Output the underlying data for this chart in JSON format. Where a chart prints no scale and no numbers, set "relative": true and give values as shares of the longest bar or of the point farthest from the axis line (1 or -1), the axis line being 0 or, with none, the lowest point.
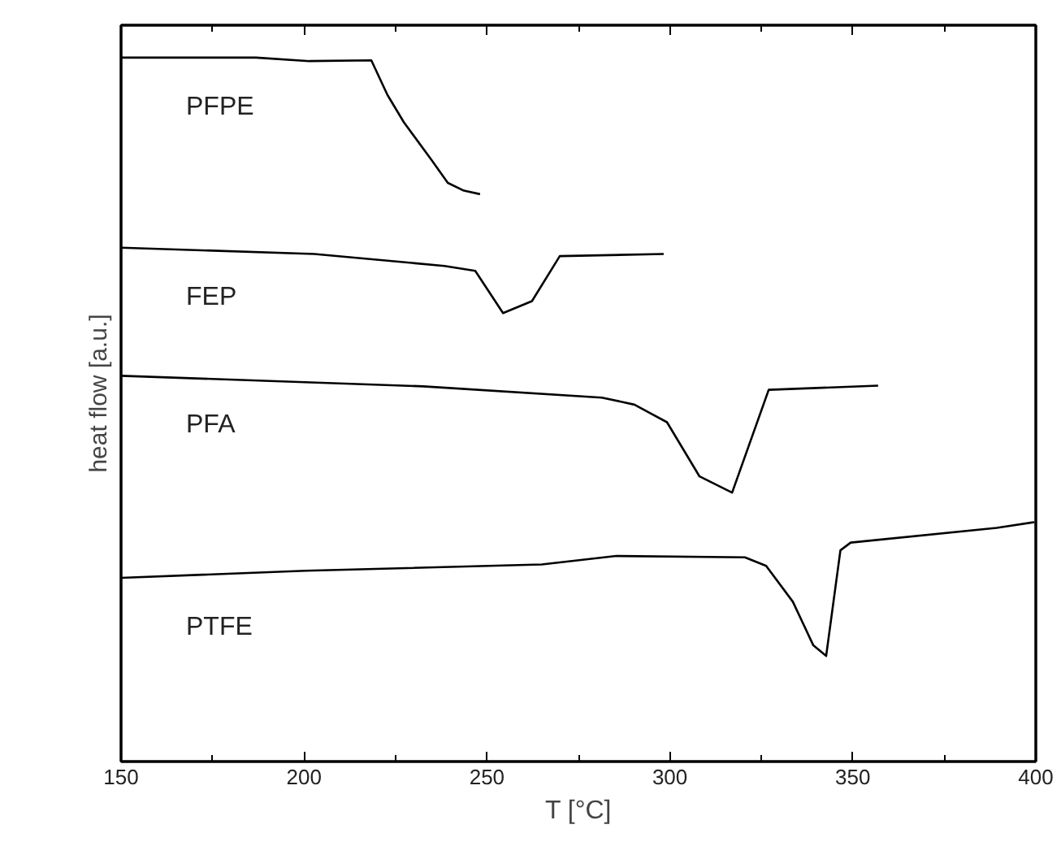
{
  "chart_data": {
    "type": "line",
    "relative": true,
    "xlabel": "T [°C]",
    "ylabel": "heat flow [a.u.]",
    "xlim": [
      150,
      400
    ],
    "xticks": [
      150,
      200,
      250,
      300,
      350,
      400
    ],
    "grid": false,
    "marker": "none",
    "line_style": "solid",
    "series": [
      {
        "name": "PFPE",
        "color": "#000000",
        "x": [
          150,
          186.9,
          201.5,
          218.4,
          222.8,
          227.3,
          234.8,
          239.3,
          243.7,
          248.1
        ],
        "values": [
          1.0,
          1.0,
          0.995,
          0.996,
          0.947,
          0.908,
          0.855,
          0.822,
          0.811,
          0.806
        ]
      },
      {
        "name": "FEP",
        "color": "#000000",
        "x": [
          150,
          202.8,
          238.4,
          246.8,
          254.4,
          262.3,
          269.9,
          298.3
        ],
        "values": [
          0.73,
          0.721,
          0.704,
          0.697,
          0.637,
          0.654,
          0.718,
          0.721
        ]
      },
      {
        "name": "PFA",
        "color": "#000000",
        "x": [
          150,
          232.6,
          281.4,
          290.3,
          299.2,
          308.1,
          317.0,
          327.0,
          356.9
        ],
        "values": [
          0.548,
          0.533,
          0.517,
          0.507,
          0.482,
          0.405,
          0.382,
          0.528,
          0.534
        ]
      },
      {
        "name": "PTFE",
        "color": "#000000",
        "x": [
          150,
          200.4,
          265,
          285.4,
          320.5,
          326.3,
          333.6,
          339.2,
          342.7,
          346.6,
          349.4,
          389.3,
          399.6
        ],
        "values": [
          0.261,
          0.271,
          0.28,
          0.292,
          0.29,
          0.278,
          0.227,
          0.165,
          0.15,
          0.3,
          0.311,
          0.332,
          0.34
        ]
      }
    ]
  }
}
